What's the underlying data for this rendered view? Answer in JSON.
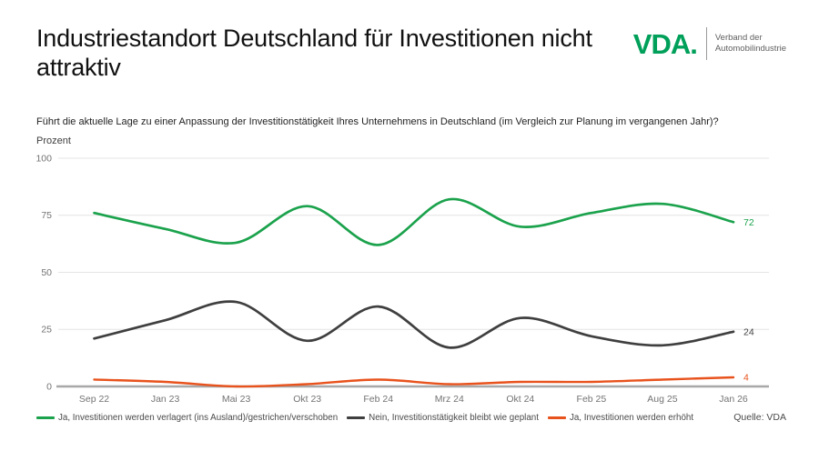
{
  "header": {
    "title": "Industriestandort Deutschland für Investitionen nicht attraktiv",
    "logo": {
      "brand": "VDA.",
      "brand_color": "#00A05A",
      "subtitle_line1": "Verband der",
      "subtitle_line2": "Automobilindustrie"
    }
  },
  "question": "Führt die aktuelle Lage zu einer Anpassung der Investitionstätigkeit Ihres Unternehmens in Deutschland (im Vergleich zur Planung im vergangenen Jahr)?",
  "source": "Quelle: VDA",
  "chart_data": {
    "type": "line",
    "title": "",
    "xlabel": "",
    "ylabel": "Prozent",
    "ylim": [
      0,
      100
    ],
    "y_ticks": [
      "100",
      "75",
      "50",
      "25",
      "0"
    ],
    "grid": "horizontal",
    "line_style": "smooth-spline",
    "legend_position": "bottom",
    "categories": [
      "Sep 22",
      "Jan 23",
      "Mai 23",
      "Okt 23",
      "Feb 24",
      "Mrz 24",
      "Okt 24",
      "Feb 25",
      "Aug 25",
      "Jan 26"
    ],
    "series": [
      {
        "name": "Ja, Investitionen werden verlagert (ins Ausland)/gestrichen/verschoben",
        "color": "#1BA24C",
        "values": [
          76,
          69,
          63,
          79,
          62,
          82,
          70,
          76,
          80,
          72
        ],
        "end_label": "72"
      },
      {
        "name": "Nein, Investitionstätigkeit bleibt wie geplant",
        "color": "#3F3F3F",
        "values": [
          21,
          29,
          37,
          20,
          35,
          17,
          30,
          22,
          18,
          24
        ],
        "end_label": "24"
      },
      {
        "name": "Ja, Investitionen werden erhöht",
        "color": "#E8521C",
        "values": [
          3,
          2,
          0,
          1,
          3,
          1,
          2,
          2,
          3,
          4
        ],
        "end_label": "4"
      }
    ]
  }
}
